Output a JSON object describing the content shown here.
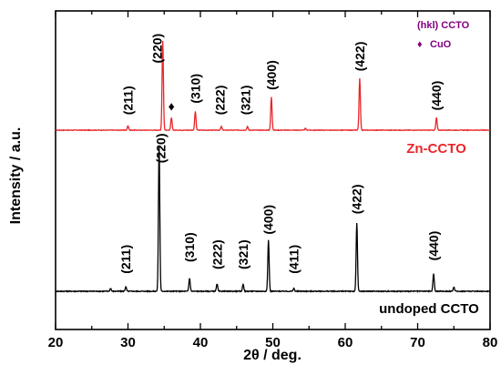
{
  "chart_data": {
    "type": "line",
    "title": "",
    "xlabel": "2θ / deg.",
    "ylabel": "Intensity / a.u.",
    "xlim": [
      20,
      80
    ],
    "x_ticks": [
      20,
      30,
      40,
      50,
      60,
      70,
      80
    ],
    "x_minor_step": 5,
    "y_ticks_shown": false,
    "grid": false,
    "legend": {
      "position": "top-right",
      "entries": [
        {
          "symbol": "",
          "label": "(hkl) CCTO"
        },
        {
          "symbol": "♦",
          "label": "CuO"
        }
      ]
    },
    "series": [
      {
        "name": "Zn-CCTO",
        "color": "#e8262a",
        "baseline": 0,
        "peaks": [
          {
            "x": 30.0,
            "intensity": 5
          },
          {
            "x": 34.8,
            "intensity": 100
          },
          {
            "x": 36.0,
            "intensity": 14
          },
          {
            "x": 39.3,
            "intensity": 21
          },
          {
            "x": 42.9,
            "intensity": 4
          },
          {
            "x": 46.5,
            "intensity": 4
          },
          {
            "x": 49.8,
            "intensity": 37
          },
          {
            "x": 54.5,
            "intensity": 2
          },
          {
            "x": 62.0,
            "intensity": 58
          },
          {
            "x": 72.6,
            "intensity": 14
          }
        ],
        "annotations": [
          {
            "x": 30.0,
            "text": "(211)",
            "level": 17
          },
          {
            "x": 34.0,
            "text": "(220)",
            "level": 75
          },
          {
            "x": 36.0,
            "text": "♦",
            "level": 22
          },
          {
            "x": 39.3,
            "text": "(310)",
            "level": 30
          },
          {
            "x": 42.7,
            "text": "(222)",
            "level": 17
          },
          {
            "x": 46.2,
            "text": "(321)",
            "level": 17
          },
          {
            "x": 49.8,
            "text": "(400)",
            "level": 45
          },
          {
            "x": 62.0,
            "text": "(422)",
            "level": 66
          },
          {
            "x": 72.6,
            "text": "(440)",
            "level": 22
          }
        ]
      },
      {
        "name": "undoped CCTO",
        "color": "#000000",
        "baseline": 0,
        "peaks": [
          {
            "x": 27.6,
            "intensity": 2
          },
          {
            "x": 29.7,
            "intensity": 3
          },
          {
            "x": 34.3,
            "intensity": 100
          },
          {
            "x": 38.5,
            "intensity": 9
          },
          {
            "x": 42.3,
            "intensity": 5
          },
          {
            "x": 45.9,
            "intensity": 5
          },
          {
            "x": 49.4,
            "intensity": 35
          },
          {
            "x": 52.9,
            "intensity": 2
          },
          {
            "x": 61.6,
            "intensity": 47
          },
          {
            "x": 72.2,
            "intensity": 12
          },
          {
            "x": 75.0,
            "intensity": 3
          }
        ],
        "annotations": [
          {
            "x": 29.7,
            "text": "(211)",
            "level": 12
          },
          {
            "x": 34.5,
            "text": "(220)",
            "level": 88
          },
          {
            "x": 38.5,
            "text": "(310)",
            "level": 20
          },
          {
            "x": 42.3,
            "text": "(222)",
            "level": 15
          },
          {
            "x": 45.9,
            "text": "(321)",
            "level": 15
          },
          {
            "x": 49.4,
            "text": "(400)",
            "level": 39
          },
          {
            "x": 52.9,
            "text": "(411)",
            "level": 12
          },
          {
            "x": 61.6,
            "text": "(422)",
            "level": 53
          },
          {
            "x": 72.2,
            "text": "(440)",
            "level": 21
          }
        ]
      }
    ]
  }
}
